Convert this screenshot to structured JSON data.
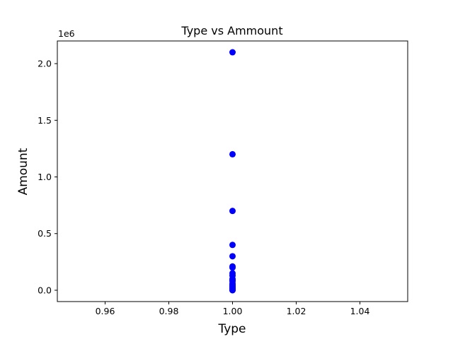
{
  "chart_data": {
    "type": "scatter",
    "title": "Type vs Ammount",
    "xlabel": "Type",
    "ylabel": "Amount",
    "y_offset_label": "1e6",
    "xlim": [
      0.945,
      1.055
    ],
    "ylim": [
      -0.1,
      2.2
    ],
    "x_ticks": [
      0.96,
      0.98,
      1.0,
      1.02,
      1.04
    ],
    "x_tick_labels": [
      "0.96",
      "0.98",
      "1.00",
      "1.02",
      "1.04"
    ],
    "y_ticks": [
      0.0,
      0.5,
      1.0,
      1.5,
      2.0
    ],
    "y_tick_labels": [
      "0.0",
      "0.5",
      "1.0",
      "1.5",
      "2.0"
    ],
    "grid": false,
    "marker_color": "#0000ff",
    "series": [
      {
        "x": [
          1.0,
          1.0,
          1.0,
          1.0,
          1.0,
          1.0,
          1.0,
          1.0,
          1.0,
          1.0,
          1.0,
          1.0,
          1.0,
          1.0,
          1.0,
          1.0,
          1.0,
          1.0,
          1.0,
          1.0,
          1.0,
          1.0,
          1.0
        ],
        "y": [
          2.1,
          1.2,
          0.7,
          0.4,
          0.3,
          0.21,
          0.2,
          0.15,
          0.13,
          0.1,
          0.09,
          0.08,
          0.06,
          0.05,
          0.04,
          0.035,
          0.03,
          0.02,
          0.015,
          0.01,
          0.005,
          0.002,
          0.0
        ]
      }
    ]
  }
}
